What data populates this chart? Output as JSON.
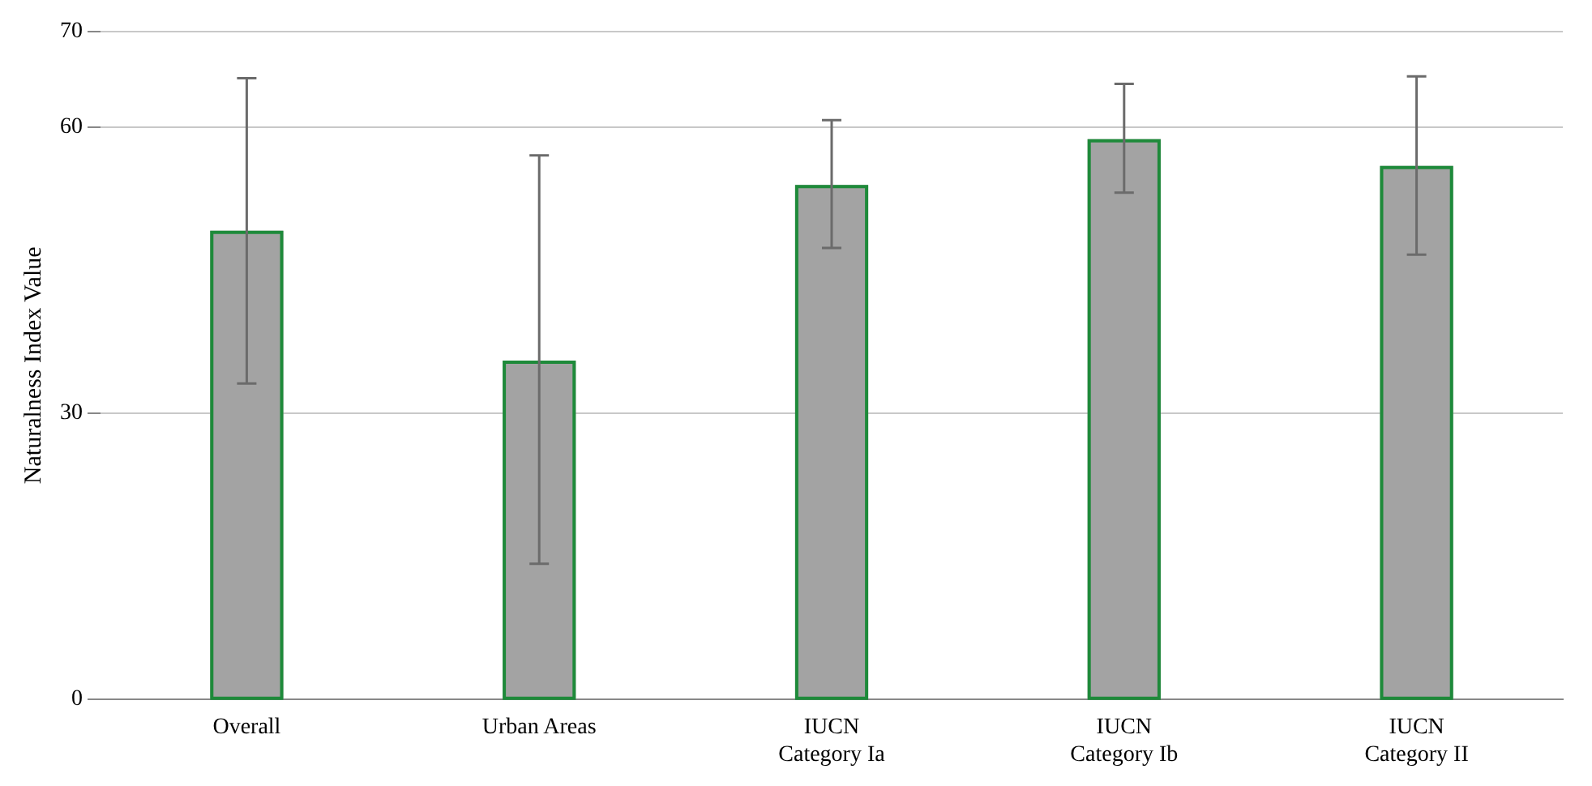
{
  "chart_data": {
    "type": "bar",
    "ylabel": "Naturalness Index Value",
    "categories": [
      "Overall",
      "Urban Areas",
      "IUCN\nCategory Ia",
      "IUCN\nCategory Ib",
      "IUCN\nCategory II"
    ],
    "series": [
      {
        "color": "#a3a3a3",
        "values": [
          49.1,
          35.5,
          53.9,
          58.7,
          55.9
        ],
        "errors": [
          [
            33.1,
            65.1
          ],
          [
            14.2,
            57.0
          ],
          [
            47.3,
            60.7
          ],
          [
            53.1,
            64.5
          ],
          [
            46.6,
            65.3
          ]
        ]
      }
    ],
    "ylim": [
      0,
      70
    ],
    "yticks": [
      0,
      30,
      60,
      70
    ],
    "grid": "y",
    "legend": false
  }
}
